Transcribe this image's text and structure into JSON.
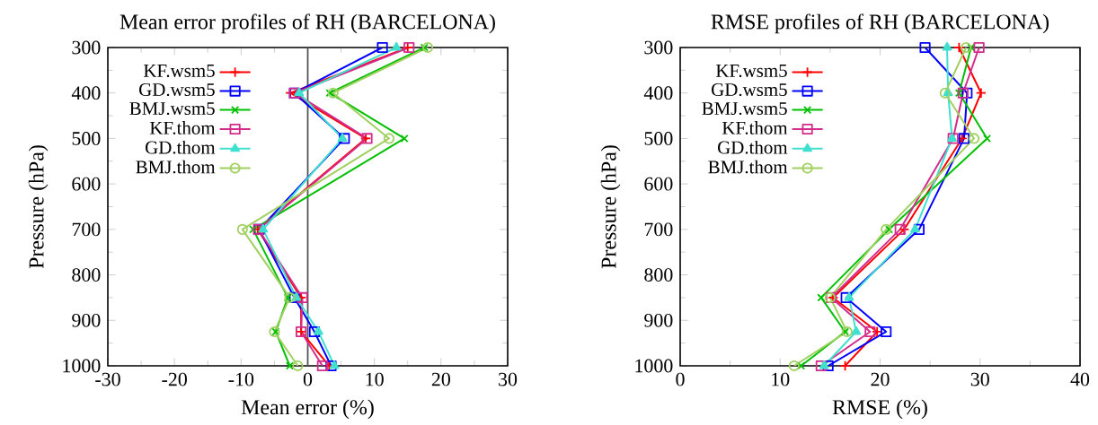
{
  "chart_data": [
    {
      "type": "line",
      "title": "Mean error profiles of RH (BARCELONA)",
      "xlabel": "Mean error (%)",
      "ylabel": "Pressure (hPa)",
      "xlim": [
        -30,
        30
      ],
      "xticks": [
        -30,
        -20,
        -10,
        0,
        10,
        20,
        30
      ],
      "ylim": [
        1000,
        300
      ],
      "yticks": [
        300,
        400,
        500,
        600,
        700,
        800,
        900,
        1000
      ],
      "legend": "top left",
      "grid": false,
      "line_style": "solid",
      "ref_lines": [
        {
          "axis": "x",
          "value": 0,
          "color": "#555555"
        }
      ],
      "series": [
        {
          "name": "KF.wsm5",
          "color": "#ff0000",
          "marker": "plus",
          "x": [
            15,
            -2.6,
            8.7,
            -7.5,
            -1,
            -1,
            3.2
          ],
          "values": [
            300,
            400,
            500,
            700,
            850,
            925,
            1000
          ]
        },
        {
          "name": "GD.wsm5",
          "color": "#0000ff",
          "marker": "square",
          "x": [
            11.2,
            -2,
            5.5,
            -7.3,
            -2,
            1,
            3.5
          ],
          "values": [
            300,
            400,
            500,
            700,
            850,
            925,
            1000
          ]
        },
        {
          "name": "BMJ.wsm5",
          "color": "#00c000",
          "marker": "cross",
          "x": [
            17.5,
            3.3,
            14.5,
            -8.2,
            -3,
            -4.8,
            -2.7
          ],
          "values": [
            300,
            400,
            500,
            700,
            850,
            925,
            1000
          ]
        },
        {
          "name": "KF.thom",
          "color": "#d42c8c",
          "marker": "square",
          "x": [
            15.2,
            -2,
            8.9,
            -7.4,
            -0.8,
            -1,
            2.2
          ],
          "values": [
            300,
            400,
            500,
            700,
            850,
            925,
            1000
          ]
        },
        {
          "name": "GD.thom",
          "color": "#40e0d0",
          "marker": "triangle",
          "x": [
            13.3,
            -1.3,
            5.2,
            -6.7,
            -1.7,
            1.6,
            4
          ],
          "values": [
            300,
            400,
            500,
            700,
            850,
            925,
            1000
          ]
        },
        {
          "name": "BMJ.thom",
          "color": "#a0d060",
          "marker": "circle",
          "x": [
            18,
            3.8,
            12.2,
            -9.8,
            -2.7,
            -5,
            -1.5
          ],
          "values": [
            300,
            400,
            500,
            700,
            850,
            925,
            1000
          ]
        }
      ]
    },
    {
      "type": "line",
      "title": "RMSE profiles of RH (BARCELONA)",
      "xlabel": "RMSE (%)",
      "ylabel": "Pressure (hPa)",
      "xlim": [
        0,
        40
      ],
      "xticks": [
        0,
        10,
        20,
        30,
        40
      ],
      "ylim": [
        1000,
        300
      ],
      "yticks": [
        300,
        400,
        500,
        600,
        700,
        800,
        900,
        1000
      ],
      "legend": "top left",
      "grid": false,
      "line_style": "solid",
      "series": [
        {
          "name": "KF.wsm5",
          "color": "#ff0000",
          "marker": "plus",
          "x": [
            27.9,
            30.1,
            28.2,
            22.4,
            15.3,
            19.7,
            16.5
          ],
          "values": [
            300,
            400,
            500,
            700,
            850,
            925,
            1000
          ]
        },
        {
          "name": "GD.wsm5",
          "color": "#0000ff",
          "marker": "square",
          "x": [
            24.5,
            28.7,
            28.4,
            23.9,
            16.6,
            20.6,
            14.8
          ],
          "values": [
            300,
            400,
            500,
            700,
            850,
            925,
            1000
          ]
        },
        {
          "name": "BMJ.wsm5",
          "color": "#00c000",
          "marker": "cross",
          "x": [
            29.1,
            27.9,
            30.7,
            20.9,
            14.1,
            16.5,
            12.1
          ],
          "values": [
            300,
            400,
            500,
            700,
            850,
            925,
            1000
          ]
        },
        {
          "name": "KF.thom",
          "color": "#d42c8c",
          "marker": "square",
          "x": [
            29.9,
            28.3,
            27.3,
            22,
            15.1,
            19,
            14.1
          ],
          "values": [
            300,
            400,
            500,
            700,
            850,
            925,
            1000
          ]
        },
        {
          "name": "GD.thom",
          "color": "#40e0d0",
          "marker": "triangle",
          "x": [
            26.7,
            26.8,
            27.2,
            23.5,
            16.9,
            17.6,
            14.4
          ],
          "values": [
            300,
            400,
            500,
            700,
            850,
            925,
            1000
          ]
        },
        {
          "name": "BMJ.thom",
          "color": "#a0d060",
          "marker": "circle",
          "x": [
            28.6,
            26.5,
            29.4,
            20.6,
            15,
            16.7,
            11.4
          ],
          "values": [
            300,
            400,
            500,
            700,
            850,
            925,
            1000
          ]
        }
      ]
    }
  ]
}
